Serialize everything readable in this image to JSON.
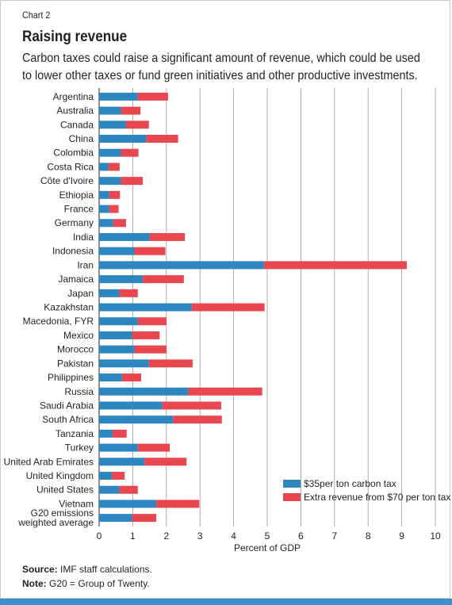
{
  "header": {
    "chart_number": "Chart 2",
    "title": "Raising revenue",
    "subtitle": "Carbon taxes could raise a significant amount of revenue, which could be used to lower other taxes or fund green initiatives and other productive investments."
  },
  "footer": {
    "source_label": "Source:",
    "source_text": "IMF staff calculations.",
    "note_label": "Note:",
    "note_text": "G20 = Group of Twenty."
  },
  "colors": {
    "series_35": "#2e86c1",
    "series_70": "#e8474f",
    "grid": "#9a9a9a",
    "bottom_rule": "#3b8fd0"
  },
  "chart_data": {
    "type": "bar",
    "orientation": "horizontal",
    "stacked": true,
    "categories": [
      "Argentina",
      "Australia",
      "Canada",
      "China",
      "Colombia",
      "Costa Rica",
      "Côte d'Ivoire",
      "Ethiopia",
      "France",
      "Germany",
      "India",
      "Indonesia",
      "Iran",
      "Jamaica",
      "Japan",
      "Kazakhstan",
      "Macedonia, FYR",
      "Mexico",
      "Morocco",
      "Pakistan",
      "Philippines",
      "Russia",
      "Saudi Arabia",
      "South Africa",
      "Tanzania",
      "Turkey",
      "United Arab Emirates",
      "United Kingdom",
      "United States",
      "Vietnam",
      "G20 emissions\nweighted average"
    ],
    "series": [
      {
        "name": "$35per ton carbon tax",
        "values": [
          1.15,
          0.65,
          0.8,
          1.4,
          0.65,
          0.28,
          0.65,
          0.3,
          0.3,
          0.42,
          1.5,
          1.05,
          4.9,
          1.3,
          0.6,
          2.75,
          1.15,
          0.98,
          1.05,
          1.48,
          0.68,
          2.65,
          1.88,
          2.2,
          0.4,
          1.15,
          1.35,
          0.38,
          0.6,
          1.7,
          0.98
        ]
      },
      {
        "name": "Extra revenue from $70 per ton tax",
        "values": [
          0.9,
          0.58,
          0.68,
          0.95,
          0.52,
          0.33,
          0.65,
          0.32,
          0.28,
          0.38,
          1.05,
          0.92,
          4.25,
          1.22,
          0.55,
          2.17,
          0.85,
          0.82,
          0.95,
          1.3,
          0.57,
          2.2,
          1.75,
          1.45,
          0.42,
          0.95,
          1.25,
          0.38,
          0.55,
          1.28,
          0.72
        ]
      }
    ],
    "xlabel": "Percent of GDP",
    "xlim": [
      0,
      10
    ],
    "xticks": [
      "0",
      "1",
      "2",
      "3",
      "4",
      "5",
      "6",
      "7",
      "8",
      "9",
      "10"
    ],
    "grid": "vertical",
    "legend_position": "bottom-right"
  }
}
